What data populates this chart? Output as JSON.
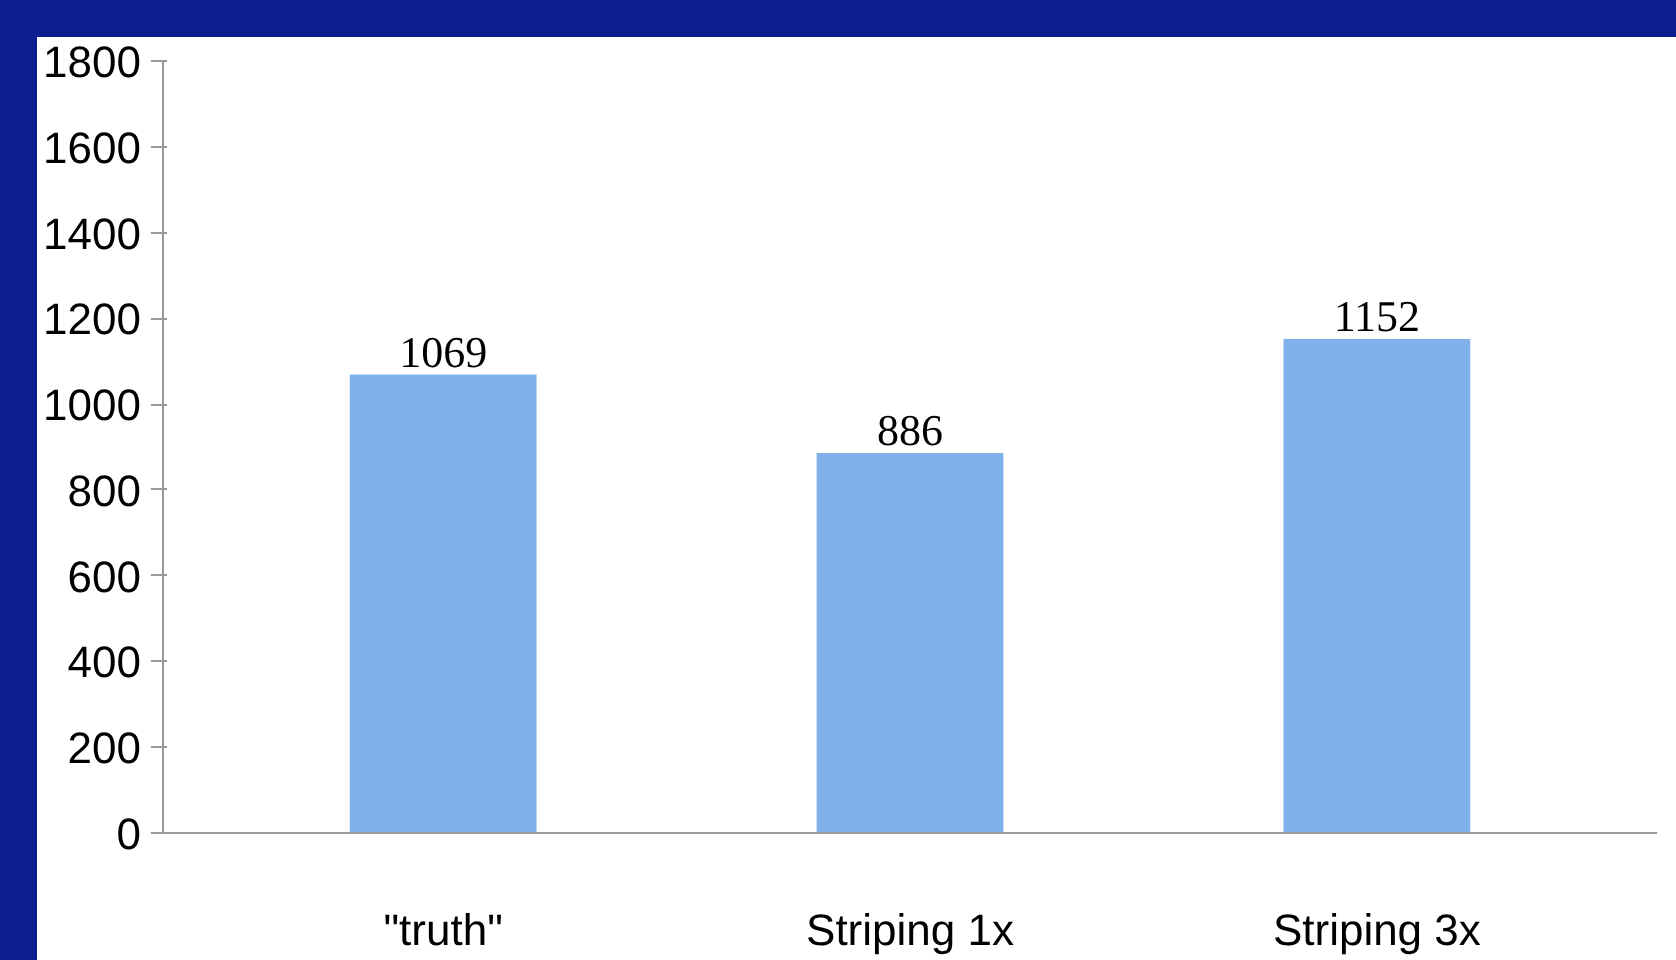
{
  "chart_data": {
    "type": "bar",
    "categories": [
      "\"truth\"",
      "Striping 1x",
      "Striping 3x"
    ],
    "values": [
      1069,
      886,
      1152
    ],
    "color": "#7fb0ea",
    "ylim": [
      0,
      1800
    ],
    "yticks": [
      0,
      200,
      400,
      600,
      800,
      1000,
      1200,
      1400,
      1600,
      1800
    ],
    "grid": false,
    "data_labels": true
  }
}
